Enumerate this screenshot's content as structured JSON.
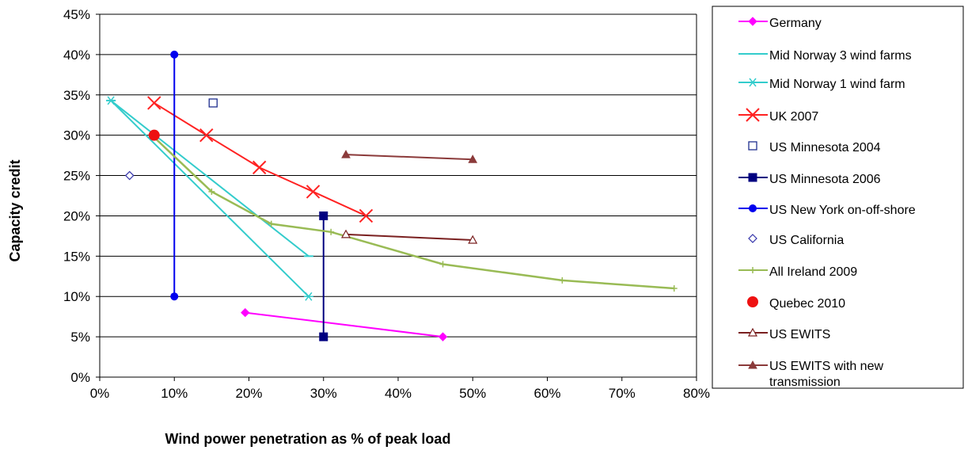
{
  "chart_data": {
    "type": "line",
    "title": "",
    "xlabel": "Wind power penetration as % of peak load",
    "ylabel": "Capacity credit",
    "xlim": [
      0,
      80
    ],
    "ylim": [
      0,
      45
    ],
    "x_ticks": [
      "0%",
      "10%",
      "20%",
      "30%",
      "40%",
      "50%",
      "60%",
      "70%",
      "80%"
    ],
    "y_ticks": [
      "0%",
      "5%",
      "10%",
      "15%",
      "20%",
      "25%",
      "30%",
      "35%",
      "40%",
      "45%"
    ],
    "grid": "horizontal",
    "legend_position": "right",
    "series": [
      {
        "name": "Germany",
        "color": "#ff00ff",
        "marker": "diamond",
        "line": true,
        "points": [
          [
            19.5,
            8
          ],
          [
            46,
            5
          ]
        ]
      },
      {
        "name": "Mid Norway 3 wind farms",
        "color": "#33cccc",
        "marker": "dash",
        "line": true,
        "points": [
          [
            1.5,
            34.3
          ],
          [
            28,
            15
          ]
        ]
      },
      {
        "name": "Mid Norway 1 wind farm",
        "color": "#33cccc",
        "marker": "asterisk",
        "line": true,
        "points": [
          [
            1.5,
            34.3
          ],
          [
            28,
            10
          ]
        ]
      },
      {
        "name": "UK 2007",
        "color": "#ff2222",
        "marker": "x",
        "line": true,
        "points": [
          [
            7.3,
            34
          ],
          [
            14.3,
            30
          ],
          [
            21.4,
            26
          ],
          [
            28.6,
            23
          ],
          [
            35.7,
            20
          ]
        ]
      },
      {
        "name": "US Minnesota 2004",
        "color": "#1f2f8f",
        "marker": "square-open",
        "line": false,
        "points": [
          [
            15.2,
            34
          ]
        ]
      },
      {
        "name": "US Minnesota 2006",
        "color": "#000080",
        "marker": "square",
        "line": true,
        "points": [
          [
            30,
            20
          ],
          [
            30,
            5
          ]
        ]
      },
      {
        "name": "US New York on-off-shore",
        "color": "#0000ee",
        "marker": "circle",
        "line": true,
        "points": [
          [
            10,
            40
          ],
          [
            10,
            10
          ]
        ]
      },
      {
        "name": "US California",
        "color": "#3333aa",
        "marker": "diamond-open",
        "line": false,
        "points": [
          [
            4,
            25
          ]
        ]
      },
      {
        "name": "All Ireland 2009",
        "color": "#99bb55",
        "marker": "plus",
        "line": true,
        "points": [
          [
            7,
            30
          ],
          [
            15,
            23
          ],
          [
            23,
            19
          ],
          [
            31,
            18
          ],
          [
            46,
            14
          ],
          [
            62,
            12
          ],
          [
            77,
            11
          ]
        ]
      },
      {
        "name": "Quebec 2010",
        "color": "#ee1111",
        "marker": "circle-big",
        "line": false,
        "points": [
          [
            7.3,
            30
          ]
        ]
      },
      {
        "name": "US EWITS",
        "color": "#7a2020",
        "marker": "triangle-open",
        "line": true,
        "points": [
          [
            33,
            17.7
          ],
          [
            50,
            17
          ]
        ]
      },
      {
        "name": "US EWITS with new transmission",
        "color": "#8b3a3a",
        "marker": "triangle",
        "line": true,
        "points": [
          [
            33,
            27.6
          ],
          [
            50,
            27
          ]
        ]
      }
    ]
  },
  "legend": {
    "labels": [
      "Germany",
      "Mid Norway 3 wind farms",
      "Mid Norway 1 wind farm",
      "UK 2007",
      "US Minnesota 2004",
      "US Minnesota 2006",
      "US New York on-off-shore",
      "US California",
      "All Ireland 2009",
      "Quebec 2010",
      "US EWITS"
    ],
    "last_label_line1": "US EWITS with new",
    "last_label_line2": "transmission"
  }
}
